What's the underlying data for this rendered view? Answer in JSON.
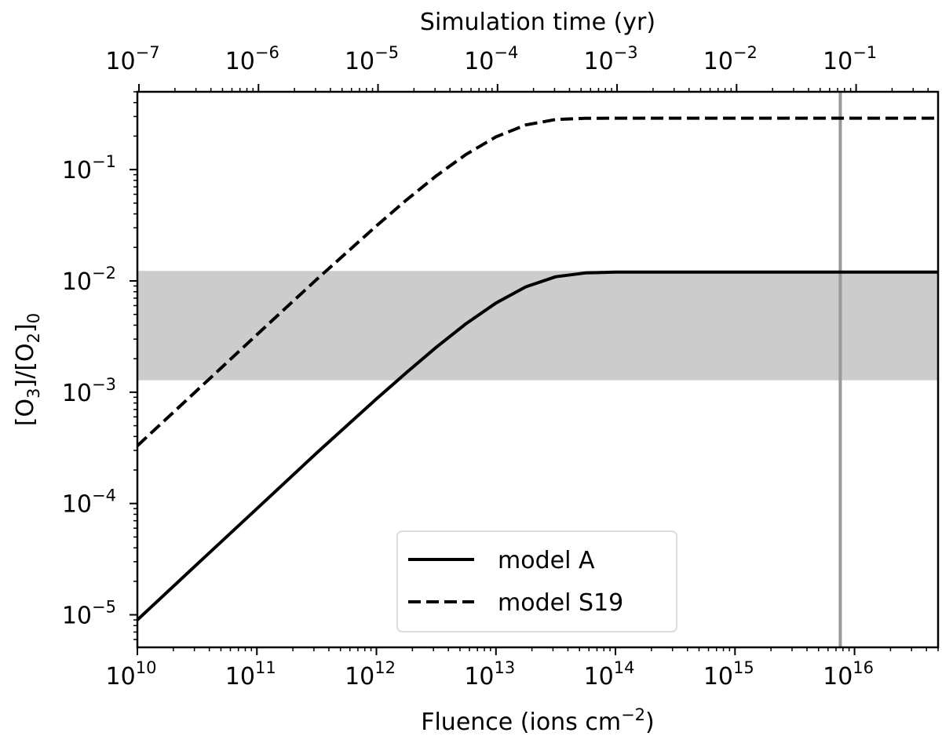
{
  "chart_data": {
    "type": "line",
    "xlabel": "Fluence (ions cm",
    "xlabel_sup": "−2",
    "xlabel_end": ")",
    "ylabel_parts": [
      "[O",
      "3",
      "]/[O",
      "2",
      "]",
      "0"
    ],
    "top_xlabel": "Simulation time (yr)",
    "x_scale": "log",
    "y_scale": "log",
    "xlim": [
      10000000000.0,
      5e+16
    ],
    "ylim": [
      5.1e-06,
      0.5
    ],
    "top_xlim": [
      9.7e-08,
      0.485
    ],
    "x_ticks": [
      {
        "v": 10000000000.0,
        "base": "10",
        "exp": "10"
      },
      {
        "v": 100000000000.0,
        "base": "10",
        "exp": "11"
      },
      {
        "v": 1000000000000.0,
        "base": "10",
        "exp": "12"
      },
      {
        "v": 10000000000000.0,
        "base": "10",
        "exp": "13"
      },
      {
        "v": 100000000000000.0,
        "base": "10",
        "exp": "14"
      },
      {
        "v": 1000000000000000.0,
        "base": "10",
        "exp": "15"
      },
      {
        "v": 1e+16,
        "base": "10",
        "exp": "16"
      }
    ],
    "y_ticks": [
      {
        "v": 0.1,
        "base": "10",
        "exp": "−1"
      },
      {
        "v": 0.01,
        "base": "10",
        "exp": "−2"
      },
      {
        "v": 0.001,
        "base": "10",
        "exp": "−3"
      },
      {
        "v": 0.0001,
        "base": "10",
        "exp": "−4"
      },
      {
        "v": 1e-05,
        "base": "10",
        "exp": "−5"
      }
    ],
    "top_ticks": [
      {
        "v": 1e-07,
        "base": "10",
        "exp": "−7"
      },
      {
        "v": 1e-06,
        "base": "10",
        "exp": "−6"
      },
      {
        "v": 1e-05,
        "base": "10",
        "exp": "−5"
      },
      {
        "v": 0.0001,
        "base": "10",
        "exp": "−4"
      },
      {
        "v": 0.001,
        "base": "10",
        "exp": "−3"
      },
      {
        "v": 0.01,
        "base": "10",
        "exp": "−2"
      },
      {
        "v": 0.1,
        "base": "10",
        "exp": "−1"
      }
    ],
    "shaded_band": {
      "y": [
        0.00128,
        0.0123
      ],
      "color": "#cccccc"
    },
    "vertical_line": {
      "x": 7600000000000000.0,
      "color": "#999999"
    },
    "legend": {
      "placement": "lower-center"
    },
    "series": [
      {
        "name": "model A",
        "style": "solid",
        "color": "#000000",
        "x": [
          10000000000.0,
          31600000000.0,
          100000000000.0,
          316000000000.0,
          1000000000000.0,
          1780000000000.0,
          3160000000000.0,
          5620000000000.0,
          10000000000000.0,
          17800000000000.0,
          31600000000000.0,
          56200000000000.0,
          100000000000000.0,
          1000000000000000.0,
          1e+16,
          5e+16
        ],
        "y": [
          9e-06,
          2.85e-05,
          9e-05,
          0.000284,
          0.00087,
          0.0015,
          0.00253,
          0.00413,
          0.00633,
          0.00885,
          0.0109,
          0.0118,
          0.012,
          0.012,
          0.012,
          0.012
        ]
      },
      {
        "name": "model S19",
        "style": "dashed",
        "color": "#000000",
        "x": [
          10000000000.0,
          31600000000.0,
          100000000000.0,
          178000000000.0,
          316000000000.0,
          1000000000000.0,
          1780000000000.0,
          3160000000000.0,
          5620000000000.0,
          10000000000000.0,
          17800000000000.0,
          31600000000000.0,
          56200000000000.0,
          100000000000000.0,
          1000000000000000.0,
          1e+16,
          5e+16
        ],
        "y": [
          0.00033,
          0.00104,
          0.00329,
          0.00583,
          0.0103,
          0.0312,
          0.0533,
          0.0877,
          0.137,
          0.197,
          0.252,
          0.282,
          0.289,
          0.29,
          0.29,
          0.29,
          0.29
        ]
      }
    ]
  }
}
